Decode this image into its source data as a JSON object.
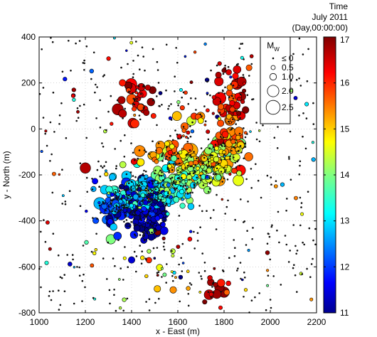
{
  "chart_data": {
    "type": "scatter",
    "xlabel": "x - East (m)",
    "ylabel": "y - North (m)",
    "xlim": [
      1000,
      2200
    ],
    "ylim": [
      -800,
      400
    ],
    "x_ticks": [
      "1000",
      "1200",
      "1400",
      "1600",
      "1800",
      "2000",
      "2200"
    ],
    "y_ticks": [
      "400",
      "200",
      "0",
      "-200",
      "-400",
      "-600",
      "-800"
    ],
    "grid": true,
    "colorbar": {
      "title_lines": [
        "Time",
        "July 2011",
        "(Day,00:00:00)"
      ],
      "min": 11,
      "max": 17,
      "ticks": [
        "17",
        "16",
        "15",
        "14",
        "13",
        "12",
        "11"
      ],
      "colormap": "jet"
    },
    "legend": {
      "title_main": "M",
      "title_sub": "W",
      "placement": "top-right",
      "entries": [
        {
          "label": "≤ 0",
          "magnitude": 0
        },
        {
          "label": "0.5",
          "magnitude": 0.5
        },
        {
          "label": "1.0",
          "magnitude": 1.0
        },
        {
          "label": "2.0",
          "magnitude": 2.0
        },
        {
          "label": "2.5",
          "magnitude": 2.5
        }
      ]
    },
    "clusters": [
      {
        "x": 1450,
        "y": -360,
        "sx": 55,
        "sy": 55,
        "t": 11.4,
        "tj": 0.4,
        "n": 160,
        "mag": 0.9
      },
      {
        "x": 1330,
        "y": -340,
        "sx": 45,
        "sy": 40,
        "t": 12.4,
        "tj": 0.4,
        "n": 80,
        "mag": 1.0
      },
      {
        "x": 1420,
        "y": -270,
        "sx": 60,
        "sy": 45,
        "t": 13.0,
        "tj": 0.5,
        "n": 90,
        "mag": 1.0
      },
      {
        "x": 1520,
        "y": -290,
        "sx": 60,
        "sy": 50,
        "t": 13.2,
        "tj": 0.5,
        "n": 70,
        "mag": 1.0
      },
      {
        "x": 1600,
        "y": -230,
        "sx": 60,
        "sy": 40,
        "t": 13.8,
        "tj": 0.5,
        "n": 90,
        "mag": 1.1
      },
      {
        "x": 1700,
        "y": -160,
        "sx": 60,
        "sy": 40,
        "t": 14.4,
        "tj": 0.5,
        "n": 90,
        "mag": 1.1
      },
      {
        "x": 1800,
        "y": -110,
        "sx": 50,
        "sy": 50,
        "t": 14.8,
        "tj": 0.5,
        "n": 70,
        "mag": 1.2
      },
      {
        "x": 1820,
        "y": -20,
        "sx": 40,
        "sy": 50,
        "t": 15.6,
        "tj": 0.4,
        "n": 40,
        "mag": 1.2
      },
      {
        "x": 1560,
        "y": -120,
        "sx": 70,
        "sy": 30,
        "t": 15.2,
        "tj": 0.6,
        "n": 60,
        "mag": 1.1
      },
      {
        "x": 1830,
        "y": 150,
        "sx": 40,
        "sy": 80,
        "t": 16.4,
        "tj": 0.5,
        "n": 50,
        "mag": 0.9
      },
      {
        "x": 1430,
        "y": 120,
        "sx": 45,
        "sy": 50,
        "t": 16.5,
        "tj": 0.4,
        "n": 40,
        "mag": 1.2
      },
      {
        "x": 1650,
        "y": 20,
        "sx": 100,
        "sy": 60,
        "t": 16.0,
        "tj": 0.5,
        "n": 40,
        "mag": 0.9
      },
      {
        "x": 1750,
        "y": -700,
        "sx": 35,
        "sy": 50,
        "t": 16.6,
        "tj": 0.3,
        "n": 18,
        "mag": 0.9
      },
      {
        "x": 1500,
        "y": -600,
        "sx": 90,
        "sy": 70,
        "t": 15.0,
        "tj": 1.5,
        "n": 25,
        "mag": 0.4
      }
    ],
    "highlighted_events": [
      {
        "x": 1200,
        "y": -170,
        "t": 16.7,
        "mag": 1.8
      },
      {
        "x": 1800,
        "y": -710,
        "t": 16.9,
        "mag": 1.8
      },
      {
        "x": 1780,
        "y": -690,
        "t": 16.9,
        "mag": 1.6
      },
      {
        "x": 1310,
        "y": -480,
        "t": 14.0,
        "mag": 1.6
      },
      {
        "x": 1400,
        "y": -570,
        "t": 11.5,
        "mag": 1.0
      },
      {
        "x": 1870,
        "y": -180,
        "t": 16.2,
        "mag": 1.8
      },
      {
        "x": 1580,
        "y": -700,
        "t": 15.4,
        "mag": 1.0
      }
    ],
    "background_events": {
      "count": 520,
      "t_range": [
        11,
        17
      ],
      "typical_mag": 0
    }
  }
}
